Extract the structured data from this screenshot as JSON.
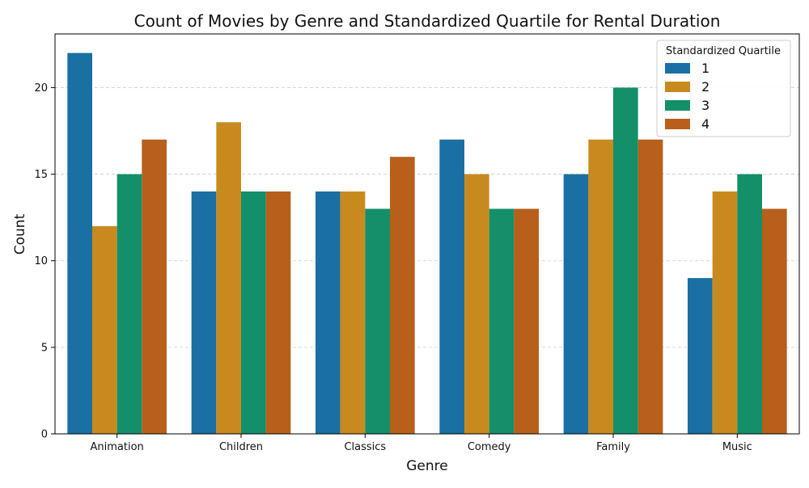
{
  "chart_data": {
    "type": "bar",
    "title": "Count of Movies by Genre and Standardized Quartile for Rental Duration",
    "xlabel": "Genre",
    "ylabel": "Count",
    "categories": [
      "Animation",
      "Children",
      "Classics",
      "Comedy",
      "Family",
      "Music"
    ],
    "series": [
      {
        "name": "1",
        "color": "#1a6fa3",
        "values": [
          22,
          14,
          14,
          17,
          15,
          9
        ]
      },
      {
        "name": "2",
        "color": "#c88a1f",
        "values": [
          12,
          18,
          14,
          15,
          17,
          14
        ]
      },
      {
        "name": "3",
        "color": "#138f6a",
        "values": [
          15,
          14,
          13,
          13,
          20,
          15
        ]
      },
      {
        "name": "4",
        "color": "#b85f1c",
        "values": [
          17,
          14,
          16,
          13,
          17,
          13
        ]
      }
    ],
    "ylim": [
      0,
      23.1
    ],
    "yticks": [
      0,
      5,
      10,
      15,
      20
    ],
    "grid": "y-dashed",
    "legend": {
      "title": "Standardized Quartile",
      "position": "top-right"
    }
  }
}
